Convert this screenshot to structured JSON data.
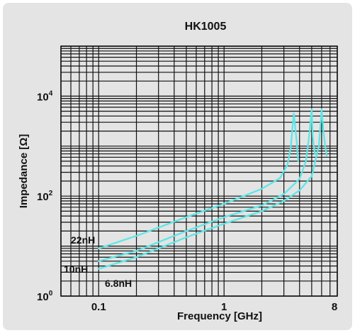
{
  "chart_data": {
    "type": "line",
    "title": "HK1005",
    "xlabel": "Frequency [GHz]",
    "ylabel": "Impedance [Ω]",
    "x_scale": "log",
    "y_scale": "log",
    "xlim": [
      0.05,
      8
    ],
    "ylim": [
      1,
      100000
    ],
    "grid": true,
    "x_ticks": [
      {
        "value": 0.1,
        "label": "0.1"
      },
      {
        "value": 1,
        "label": "1"
      },
      {
        "value": 8,
        "label": "8"
      }
    ],
    "y_ticks": [
      {
        "value": 1,
        "base": "10",
        "exp": "0"
      },
      {
        "value": 100,
        "base": "10",
        "exp": "2"
      },
      {
        "value": 10000,
        "base": "10",
        "exp": "4"
      }
    ],
    "series": [
      {
        "name": "22nH",
        "color": "#5ee6e6",
        "x": [
          0.1,
          0.2,
          0.5,
          1.0,
          2.0,
          2.8,
          3.2,
          3.4,
          3.6,
          3.8,
          3.9
        ],
        "y": [
          9,
          16,
          38,
          70,
          140,
          230,
          420,
          900,
          4500,
          1200,
          500
        ]
      },
      {
        "name": "10nH",
        "color": "#5ee6e6",
        "x": [
          0.1,
          0.2,
          0.5,
          1.0,
          2.0,
          3.0,
          4.0,
          4.5,
          4.8,
          5.0,
          5.1,
          5.3
        ],
        "y": [
          5,
          8,
          20,
          38,
          65,
          110,
          220,
          500,
          1800,
          5500,
          1500,
          700
        ]
      },
      {
        "name": "6.8nH",
        "color": "#5ee6e6",
        "x": [
          0.1,
          0.2,
          0.5,
          1.0,
          2.0,
          3.0,
          4.0,
          5.0,
          5.7,
          6.0,
          6.2,
          6.4,
          6.6
        ],
        "y": [
          3.5,
          6,
          15,
          28,
          50,
          80,
          130,
          250,
          1000,
          5500,
          2000,
          1000,
          650
        ]
      }
    ],
    "annotations": [
      "22nH",
      "10nH",
      "6.8nH"
    ]
  }
}
